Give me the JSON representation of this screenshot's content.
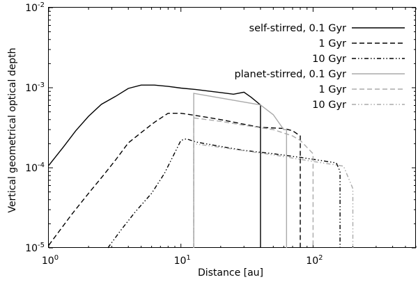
{
  "chart_data": {
    "type": "line",
    "xlabel": "Distance [au]",
    "ylabel": "Vertical geometrical optical depth",
    "xscale": "log",
    "yscale": "log",
    "xlim": [
      1,
      600
    ],
    "ylim": [
      1e-05,
      0.01
    ],
    "x_ticks": [
      {
        "value": 1,
        "base": "10",
        "exp": "0"
      },
      {
        "value": 10,
        "base": "10",
        "exp": "1"
      },
      {
        "value": 100,
        "base": "10",
        "exp": "2"
      }
    ],
    "y_ticks": [
      {
        "value": 1e-05,
        "base": "10",
        "exp": "-5"
      },
      {
        "value": 0.0001,
        "base": "10",
        "exp": "-4"
      },
      {
        "value": 0.001,
        "base": "10",
        "exp": "-3"
      },
      {
        "value": 0.01,
        "base": "10",
        "exp": "-2"
      }
    ],
    "legend_position": "top-right",
    "grid": false,
    "series": [
      {
        "name": "self-stirred, 0.1 Gyr",
        "color": "#000000",
        "dash": "solid",
        "points": [
          [
            1.0,
            0.000107
          ],
          [
            1.3,
            0.000185
          ],
          [
            1.6,
            0.00029
          ],
          [
            2.0,
            0.00044
          ],
          [
            2.5,
            0.00062
          ],
          [
            3.2,
            0.00078
          ],
          [
            4.0,
            0.00098
          ],
          [
            5.0,
            0.00108
          ],
          [
            6.3,
            0.00108
          ],
          [
            8.0,
            0.00104
          ],
          [
            10.0,
            0.00099
          ],
          [
            13.0,
            0.00095
          ],
          [
            16.0,
            0.00091
          ],
          [
            20.0,
            0.00087
          ],
          [
            25.0,
            0.00083
          ],
          [
            30.0,
            0.00088
          ],
          [
            34.0,
            0.00076
          ],
          [
            40.0,
            0.00061
          ],
          [
            40.0,
            1e-05
          ]
        ]
      },
      {
        "name": "1 Gyr",
        "color": "#000000",
        "dash": "dashed",
        "points": [
          [
            1.0,
            1.08e-05
          ],
          [
            1.5,
            2.65e-05
          ],
          [
            2.0,
            4.8e-05
          ],
          [
            2.5,
            7.5e-05
          ],
          [
            3.2,
            0.000125
          ],
          [
            4.0,
            0.000205
          ],
          [
            5.0,
            0.000275
          ],
          [
            6.3,
            0.00037
          ],
          [
            8.0,
            0.00048
          ],
          [
            10.0,
            0.00048
          ],
          [
            13.0,
            0.00045
          ],
          [
            20.0,
            0.0004
          ],
          [
            30.0,
            0.00035
          ],
          [
            40.0,
            0.00032
          ],
          [
            60.0,
            0.00031
          ],
          [
            70.0,
            0.00029
          ],
          [
            80.0,
            0.00025
          ],
          [
            80.0,
            1e-05
          ]
        ]
      },
      {
        "name": "10 Gyr",
        "color": "#000000",
        "dash": "dashdotdot",
        "points": [
          [
            2.8,
            1e-05
          ],
          [
            3.5,
            1.65e-05
          ],
          [
            4.5,
            2.8e-05
          ],
          [
            6.0,
            4.8e-05
          ],
          [
            7.5,
            8.5e-05
          ],
          [
            9.0,
            0.000155
          ],
          [
            10.0,
            0.00022
          ],
          [
            11.0,
            0.00023
          ],
          [
            13.0,
            0.00021
          ],
          [
            20.0,
            0.000185
          ],
          [
            30.0,
            0.000165
          ],
          [
            50.0,
            0.00015
          ],
          [
            80.0,
            0.000135
          ],
          [
            120.0,
            0.000122
          ],
          [
            150.0,
            0.000115
          ],
          [
            160.0,
            9e-05
          ],
          [
            160.0,
            1e-05
          ]
        ]
      },
      {
        "name": "planet-stirred, 0.1 Gyr",
        "color": "#aaaaaa",
        "dash": "solid",
        "points": [
          [
            12.5,
            1e-05
          ],
          [
            12.5,
            0.00085
          ],
          [
            40.0,
            0.00061
          ],
          [
            50.0,
            0.00046
          ],
          [
            60.0,
            0.0003
          ],
          [
            63.0,
            0.0003
          ],
          [
            63.0,
            1e-05
          ]
        ]
      },
      {
        "name": "1 Gyr",
        "color": "#aaaaaa",
        "dash": "dashed",
        "points": [
          [
            12.5,
            1e-05
          ],
          [
            12.5,
            0.00042
          ],
          [
            20.0,
            0.00038
          ],
          [
            30.0,
            0.00034
          ],
          [
            50.0,
            0.0003
          ],
          [
            70.0,
            0.00025
          ],
          [
            80.0,
            0.00022
          ],
          [
            100.0,
            0.00015
          ],
          [
            100.0,
            1e-05
          ]
        ]
      },
      {
        "name": "10 Gyr",
        "color": "#aaaaaa",
        "dash": "dashdotdot",
        "points": [
          [
            12.5,
            1e-05
          ],
          [
            12.5,
            0.0002
          ],
          [
            20.0,
            0.00018
          ],
          [
            50.0,
            0.000145
          ],
          [
            100.0,
            0.00012
          ],
          [
            170.0,
            0.000105
          ],
          [
            200.0,
            5.5e-05
          ],
          [
            200.0,
            1e-05
          ]
        ]
      }
    ]
  }
}
